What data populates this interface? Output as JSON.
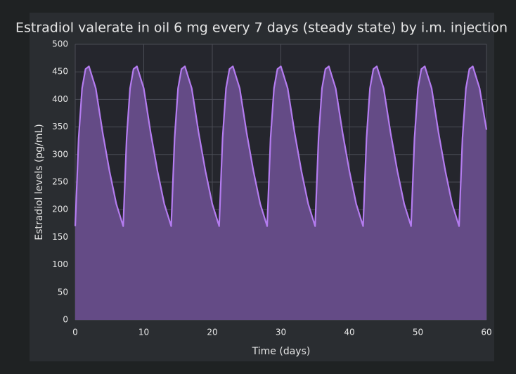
{
  "chart_data": {
    "type": "area",
    "title": "Estradiol valerate in oil 6 mg every 7 days (steady state) by i.m. injection",
    "x_label": "Time (days)",
    "y_label": "Estradiol levels (pg/mL)",
    "x": [
      0,
      0.5,
      1,
      1.5,
      2,
      3,
      4,
      5,
      6,
      7,
      7.5,
      8,
      8.5,
      9,
      10,
      11,
      12,
      13,
      14,
      14.5,
      15,
      15.5,
      16,
      17,
      18,
      19,
      20,
      21,
      21.5,
      22,
      22.5,
      23,
      24,
      25,
      26,
      27,
      28,
      28.5,
      29,
      29.5,
      30,
      31,
      32,
      33,
      34,
      35,
      35.5,
      36,
      36.5,
      37,
      38,
      39,
      40,
      41,
      42,
      42.5,
      43,
      43.5,
      44,
      45,
      46,
      47,
      48,
      49,
      49.5,
      50,
      50.5,
      51,
      52,
      53,
      54,
      55,
      56,
      56.5,
      57,
      57.5,
      58,
      59,
      60
    ],
    "series": [
      {
        "color": "#b47cf0",
        "fill": "#644b86",
        "values": [
          170,
          330,
          420,
          455,
          460,
          420,
          340,
          270,
          210,
          170,
          330,
          420,
          455,
          460,
          420,
          340,
          270,
          210,
          170,
          330,
          420,
          455,
          460,
          420,
          340,
          270,
          210,
          170,
          330,
          420,
          455,
          460,
          420,
          340,
          270,
          210,
          170,
          330,
          420,
          455,
          460,
          420,
          340,
          270,
          210,
          170,
          330,
          420,
          455,
          460,
          420,
          340,
          270,
          210,
          170,
          330,
          420,
          455,
          460,
          420,
          340,
          270,
          210,
          170,
          330,
          420,
          455,
          460,
          420,
          340,
          270,
          210,
          170,
          330,
          420,
          455,
          460,
          420,
          345
        ]
      }
    ],
    "xlim": [
      0,
      60
    ],
    "ylim": [
      0,
      500
    ],
    "xticks": [
      0,
      10,
      20,
      30,
      40,
      50,
      60
    ],
    "yticks": [
      0,
      50,
      100,
      150,
      200,
      250,
      300,
      350,
      400,
      450,
      500
    ],
    "grid": true
  }
}
